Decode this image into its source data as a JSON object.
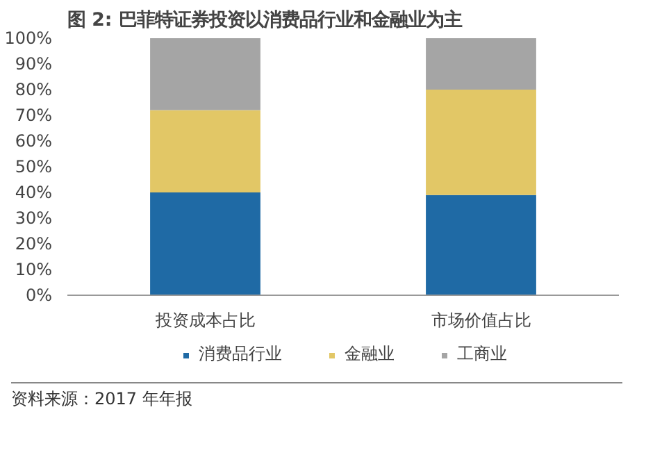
{
  "chart_data": {
    "type": "bar",
    "stacked": true,
    "title": "图 2:  巴菲特证券投资以消费品行业和金融业为主",
    "categories": [
      "投资成本占比",
      "市场价值占比"
    ],
    "series": [
      {
        "name": "消费品行业",
        "color": "#1f6aa5",
        "values": [
          40,
          39
        ]
      },
      {
        "name": "金融业",
        "color": "#e2c766",
        "values": [
          32,
          41
        ]
      },
      {
        "name": "工商业",
        "color": "#a5a5a5",
        "values": [
          28,
          20
        ]
      }
    ],
    "ylim": [
      0,
      100
    ],
    "yticks": [
      {
        "value": 0,
        "label": "0%"
      },
      {
        "value": 10,
        "label": "10%"
      },
      {
        "value": 20,
        "label": "20%"
      },
      {
        "value": 30,
        "label": "30%"
      },
      {
        "value": 40,
        "label": "40%"
      },
      {
        "value": 50,
        "label": "50%"
      },
      {
        "value": 60,
        "label": "60%"
      },
      {
        "value": 70,
        "label": "70%"
      },
      {
        "value": 80,
        "label": "80%"
      },
      {
        "value": 90,
        "label": "90%"
      },
      {
        "value": 100,
        "label": "100%"
      }
    ],
    "grid": false,
    "legend": "bottom",
    "annotations": [
      "资料来源：2017 年年报"
    ]
  }
}
